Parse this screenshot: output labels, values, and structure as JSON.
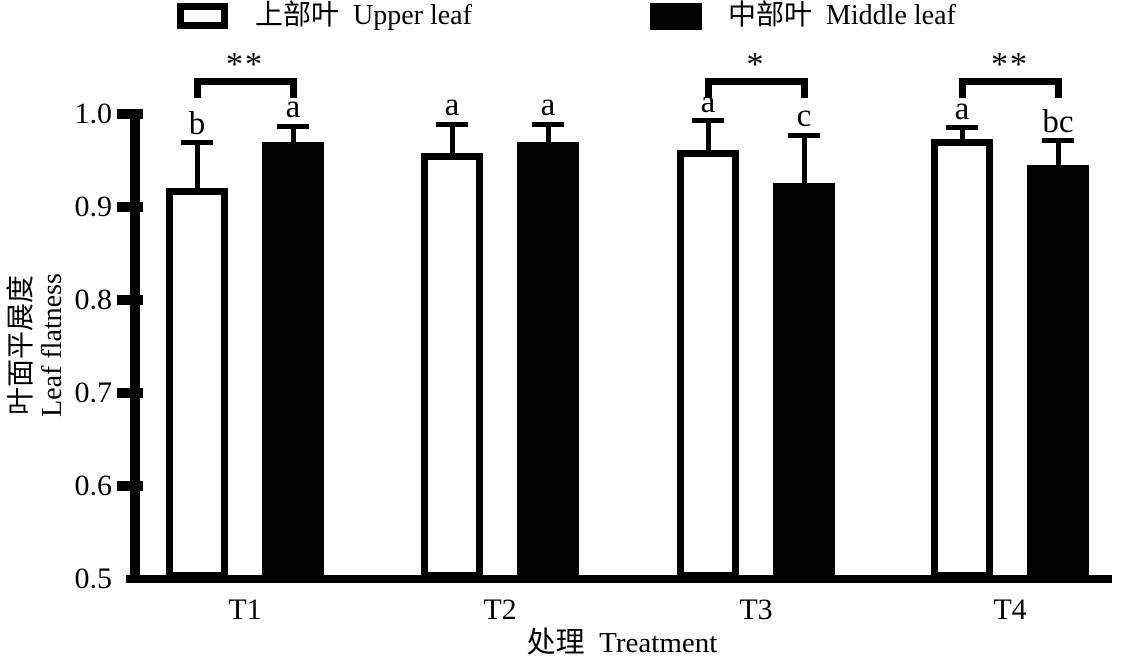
{
  "legend": {
    "items": [
      {
        "label": "上部叶  Upper leaf",
        "swatch": "white",
        "color": "#ffffff"
      },
      {
        "label": "中部叶  Middle leaf",
        "swatch": "black",
        "color": "#000000"
      }
    ]
  },
  "chart_data": {
    "type": "bar",
    "title": "",
    "categories": [
      "T1",
      "T2",
      "T3",
      "T4"
    ],
    "series": [
      {
        "name": "上部叶 Upper leaf",
        "fill": "#ffffff",
        "values": [
          0.92,
          0.958,
          0.961,
          0.973
        ],
        "errors": [
          0.049,
          0.031,
          0.032,
          0.012
        ],
        "letters": [
          "b",
          "a",
          "a",
          "a"
        ]
      },
      {
        "name": "中部叶 Middle leaf",
        "fill": "#000000",
        "values": [
          0.97,
          0.97,
          0.926,
          0.945
        ],
        "errors": [
          0.017,
          0.019,
          0.051,
          0.026
        ],
        "letters": [
          "a",
          "a",
          "c",
          "bc"
        ]
      }
    ],
    "significance": [
      "**",
      "",
      "*",
      "**"
    ],
    "xlabel": "处理  Treatment",
    "ylabel_cn": "叶面平展度",
    "ylabel_en": "Leaf flatness",
    "yticks": [
      "1.0",
      "0.9",
      "0.8",
      "0.7",
      "0.6",
      "0.5"
    ],
    "ylim": [
      0.5,
      1.0
    ],
    "grid": false,
    "legend_position": "top",
    "axis_color": "#000000"
  }
}
